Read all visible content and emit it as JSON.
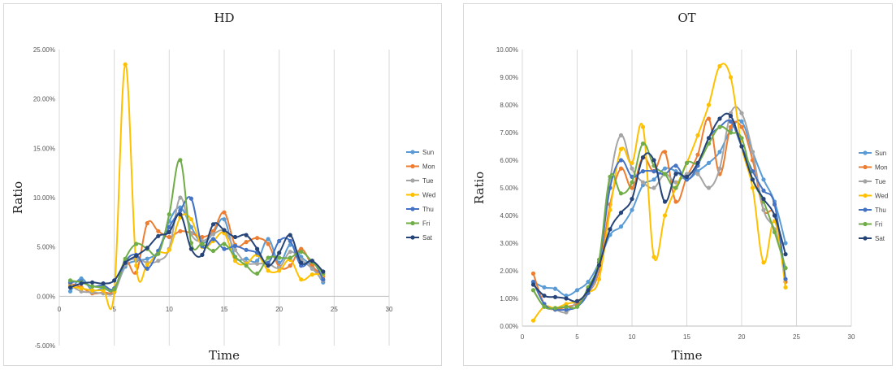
{
  "chart_data": [
    {
      "type": "line",
      "title": "HD",
      "xlabel": "Time",
      "ylabel": "Ratio",
      "xlim": [
        0,
        30
      ],
      "xticks": [
        0,
        5,
        10,
        15,
        20,
        25,
        30
      ],
      "ylim": [
        -5,
        25
      ],
      "yticks": [
        "-5.00%",
        "0.00%",
        "5.00%",
        "10.00%",
        "15.00%",
        "20.00%",
        "25.00%"
      ],
      "yticks_values": [
        -5,
        0,
        5,
        10,
        15,
        20,
        25
      ],
      "grid": "vertical",
      "legend": "right",
      "x": [
        1,
        2,
        3,
        4,
        5,
        6,
        7,
        8,
        9,
        10,
        11,
        12,
        13,
        14,
        15,
        16,
        17,
        18,
        19,
        20,
        21,
        22,
        23,
        24
      ],
      "series": [
        {
          "name": "Sun",
          "color": "#5b9bd5",
          "values": [
            0.5,
            1.8,
            0.6,
            0.8,
            0.6,
            3.0,
            3.6,
            3.8,
            4.6,
            7.6,
            9.0,
            7.0,
            5.4,
            6.4,
            7.8,
            4.0,
            3.8,
            3.6,
            5.8,
            3.4,
            5.2,
            4.0,
            3.0,
            1.4
          ]
        },
        {
          "name": "Mon",
          "color": "#ed7d31",
          "values": [
            1.3,
            0.9,
            0.3,
            0.4,
            0.6,
            3.6,
            2.4,
            7.4,
            6.6,
            6.0,
            6.6,
            6.4,
            6.0,
            6.6,
            8.5,
            5.2,
            5.5,
            5.9,
            5.3,
            3.0,
            3.1,
            4.8,
            3.1,
            2.0
          ]
        },
        {
          "name": "Tue",
          "color": "#a5a5a5",
          "values": [
            1.1,
            0.5,
            0.4,
            0.3,
            0.4,
            3.2,
            3.8,
            3.4,
            3.6,
            4.8,
            10.0,
            6.3,
            5.6,
            6.3,
            6.6,
            4.7,
            3.4,
            3.3,
            3.3,
            2.9,
            4.5,
            3.7,
            2.8,
            1.6
          ]
        },
        {
          "name": "Wed",
          "color": "#ffc000",
          "values": [
            1.0,
            0.8,
            0.6,
            0.6,
            0.5,
            23.5,
            3.1,
            3.2,
            4.4,
            4.7,
            8.0,
            7.8,
            5.0,
            5.6,
            6.4,
            3.6,
            3.3,
            4.2,
            2.6,
            2.6,
            3.7,
            1.7,
            2.2,
            2.2
          ]
        },
        {
          "name": "Thu",
          "color": "#4472c4",
          "values": [
            1.4,
            1.5,
            1.0,
            1.1,
            0.8,
            3.5,
            4.2,
            2.8,
            4.6,
            7.0,
            8.7,
            9.9,
            5.1,
            5.8,
            4.8,
            5.1,
            4.7,
            4.4,
            3.4,
            5.6,
            5.6,
            3.1,
            3.6,
            1.7
          ]
        },
        {
          "name": "Fri",
          "color": "#70ad47",
          "values": [
            1.6,
            1.4,
            1.0,
            0.9,
            0.7,
            3.8,
            5.3,
            4.8,
            4.3,
            8.3,
            13.8,
            5.4,
            5.3,
            4.6,
            5.3,
            4.0,
            3.1,
            2.3,
            3.9,
            3.9,
            3.9,
            4.5,
            3.5,
            2.3
          ]
        },
        {
          "name": "Sat",
          "color": "#264478",
          "values": [
            0.9,
            1.3,
            1.4,
            1.3,
            1.6,
            3.4,
            4.1,
            4.9,
            6.1,
            6.5,
            8.3,
            4.8,
            4.2,
            7.3,
            6.7,
            6.0,
            6.2,
            4.8,
            3.1,
            4.4,
            6.2,
            3.4,
            3.6,
            2.5
          ]
        }
      ]
    },
    {
      "type": "line",
      "title": "OT",
      "xlabel": "Time",
      "ylabel": "Ratio",
      "xlim": [
        0,
        30
      ],
      "xticks": [
        0,
        5,
        10,
        15,
        20,
        25,
        30
      ],
      "ylim": [
        0,
        10
      ],
      "yticks": [
        "0.00%",
        "1.00%",
        "2.00%",
        "3.00%",
        "4.00%",
        "5.00%",
        "6.00%",
        "7.00%",
        "8.00%",
        "9.00%",
        "10.00%"
      ],
      "yticks_values": [
        0,
        1,
        2,
        3,
        4,
        5,
        6,
        7,
        8,
        9,
        10
      ],
      "grid": "vertical",
      "legend": "right",
      "x": [
        1,
        2,
        3,
        4,
        5,
        6,
        7,
        8,
        9,
        10,
        11,
        12,
        13,
        14,
        15,
        16,
        17,
        18,
        19,
        20,
        21,
        22,
        23,
        24
      ],
      "series": [
        {
          "name": "Sun",
          "color": "#5b9bd5",
          "values": [
            1.6,
            1.4,
            1.35,
            1.1,
            1.3,
            1.6,
            2.3,
            3.3,
            3.6,
            4.2,
            5.1,
            5.3,
            5.7,
            5.6,
            5.3,
            5.6,
            5.9,
            6.3,
            7.1,
            7.4,
            6.3,
            5.3,
            4.5,
            3.0
          ]
        },
        {
          "name": "Mon",
          "color": "#ed7d31",
          "values": [
            1.9,
            0.8,
            0.6,
            0.7,
            0.8,
            1.2,
            2.0,
            4.4,
            5.7,
            5.0,
            6.1,
            5.6,
            6.3,
            4.5,
            5.4,
            6.2,
            7.5,
            5.5,
            7.2,
            7.2,
            6.0,
            4.2,
            4.0,
            1.6
          ]
        },
        {
          "name": "Tue",
          "color": "#a5a5a5",
          "values": [
            1.3,
            0.7,
            0.6,
            0.5,
            0.9,
            1.2,
            2.2,
            5.3,
            6.9,
            5.7,
            5.2,
            5.0,
            5.5,
            5.2,
            5.5,
            5.5,
            5.0,
            5.7,
            7.7,
            7.7,
            6.3,
            4.2,
            3.5,
            2.1
          ]
        },
        {
          "name": "Wed",
          "color": "#ffc000",
          "values": [
            0.2,
            0.7,
            0.65,
            0.8,
            0.9,
            1.2,
            1.7,
            4.2,
            6.4,
            5.9,
            7.2,
            2.5,
            4.0,
            5.0,
            5.9,
            6.9,
            8.0,
            9.4,
            9.0,
            6.5,
            5.0,
            2.3,
            3.8,
            1.4
          ]
        },
        {
          "name": "Thu",
          "color": "#4472c4",
          "values": [
            1.6,
            0.8,
            0.6,
            0.6,
            0.7,
            1.2,
            2.3,
            5.0,
            6.0,
            5.4,
            5.6,
            5.6,
            5.5,
            5.8,
            5.3,
            5.8,
            6.8,
            7.2,
            7.4,
            6.5,
            5.6,
            4.9,
            4.4,
            1.7
          ]
        },
        {
          "name": "Fri",
          "color": "#70ad47",
          "values": [
            1.3,
            0.7,
            0.65,
            0.7,
            0.7,
            1.4,
            2.4,
            5.4,
            4.8,
            5.2,
            6.6,
            5.8,
            5.5,
            5.0,
            5.9,
            5.9,
            6.6,
            7.2,
            7.0,
            6.8,
            5.3,
            4.5,
            3.4,
            2.1
          ]
        },
        {
          "name": "Sat",
          "color": "#264478",
          "values": [
            1.5,
            1.1,
            1.05,
            1.0,
            0.9,
            1.3,
            2.2,
            3.5,
            4.1,
            4.6,
            6.1,
            6.0,
            4.5,
            5.5,
            5.4,
            5.9,
            6.8,
            7.5,
            7.6,
            6.5,
            5.3,
            4.6,
            4.0,
            2.6
          ]
        }
      ]
    }
  ]
}
